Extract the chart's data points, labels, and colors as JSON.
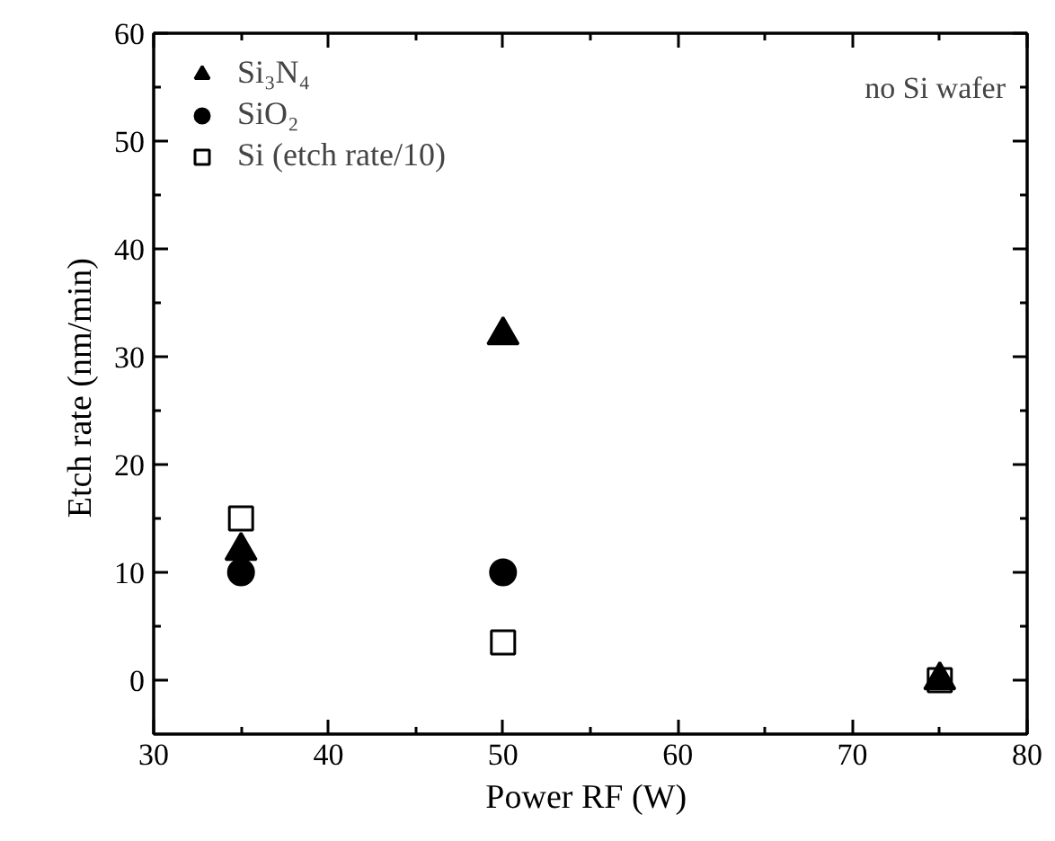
{
  "chart_data": {
    "type": "scatter",
    "xlabel": "Power RF  (W)",
    "ylabel": "Etch rate  (nm/min)",
    "x": [
      35,
      50,
      75
    ],
    "series": [
      {
        "name": "Si₃N₄",
        "color": "#000000",
        "marker": "triangle",
        "values": [
          12,
          32,
          0
        ]
      },
      {
        "name": "SiO₂",
        "color": "#000000",
        "marker": "circle",
        "values": [
          10,
          10,
          null
        ]
      },
      {
        "name": "Si (etch rate/10)",
        "color": "#000000",
        "marker": "square",
        "values": [
          15,
          3.5,
          0
        ]
      }
    ],
    "xlim": [
      30,
      80
    ],
    "xticks": [
      30,
      {
        "value": 35,
        "label": null
      },
      40,
      {
        "value": 45,
        "label": null
      },
      50,
      {
        "value": 55,
        "label": null
      },
      60,
      {
        "value": 65,
        "label": null
      },
      70,
      {
        "value": 75,
        "label": null
      },
      80
    ],
    "ylim": [
      -5,
      60
    ],
    "yticks": [
      0,
      {
        "value": 5,
        "label": null
      },
      10,
      {
        "value": 15,
        "label": null
      },
      20,
      {
        "value": 25,
        "label": null
      },
      30,
      {
        "value": 35,
        "label": null
      },
      40,
      {
        "value": 45,
        "label": null
      },
      50,
      {
        "value": 55,
        "label": null
      },
      60
    ],
    "annotations": [
      "no Si wafer"
    ],
    "legend": "top left",
    "grid": false
  }
}
